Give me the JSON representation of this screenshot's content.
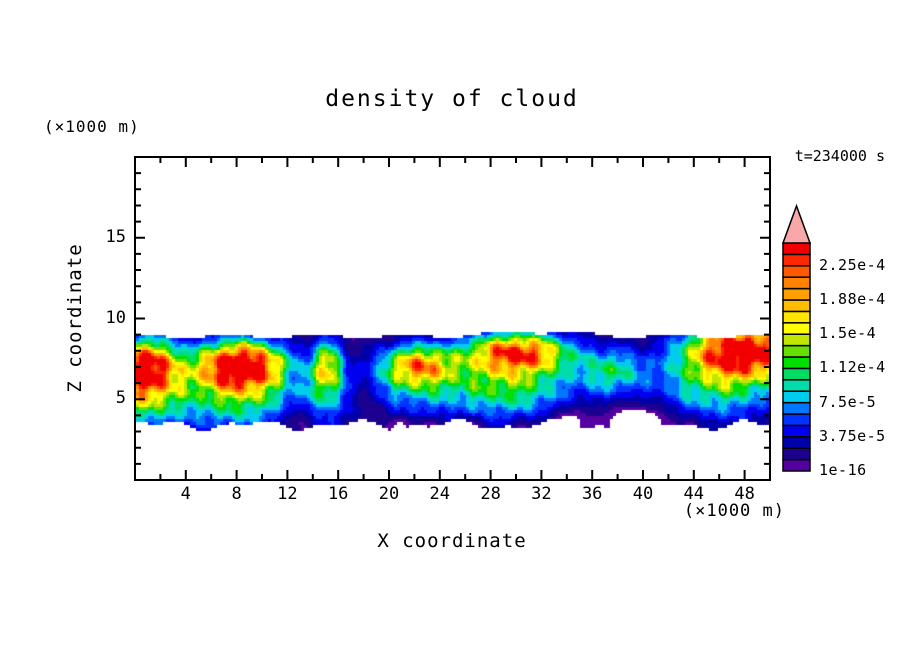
{
  "chart_data": {
    "type": "heatmap",
    "title": "density of cloud",
    "annotation": "t=234000 s",
    "xlabel": "X coordinate",
    "ylabel": "Z coordinate",
    "x_units_label": "(×1000 m)",
    "y_units_label": "(×1000 m)",
    "xlim": [
      0,
      50
    ],
    "zlim": [
      0,
      20
    ],
    "x_major_ticks": [
      4,
      8,
      12,
      16,
      20,
      24,
      28,
      32,
      36,
      40,
      44,
      48
    ],
    "x_minor_step": 2,
    "y_major_ticks": [
      5,
      10,
      15
    ],
    "y_minor_step": 1,
    "grid": false,
    "legend_position": "right-colorbar",
    "colorbar": {
      "levels_min": 1e-16,
      "levels_step": 1.25e-05,
      "levels_max": 0.00025,
      "n_segments": 20,
      "tick_labels": [
        "1e-16",
        "3.75e-5",
        "7.5e-5",
        "1.12e-4",
        "1.5e-4",
        "1.88e-4",
        "2.25e-4"
      ],
      "label_every": 3,
      "palette_bottom_to_top": [
        "#5500a0",
        "#1c0090",
        "#0000aa",
        "#0000ee",
        "#0033ff",
        "#0077ff",
        "#00ccee",
        "#00dcaa",
        "#00dc64",
        "#00e000",
        "#66e000",
        "#bee600",
        "#ffff00",
        "#ffe600",
        "#ffbe00",
        "#ffa000",
        "#ff8200",
        "#ff5a00",
        "#ff2800",
        "#f20000"
      ],
      "overflow_color": "#f8a8a8"
    },
    "field": {
      "description": "horizontal cloud layer between z≈3.3 and z≈8.9 (×1000 m) with embedded high-density cells",
      "band": {
        "top": 8.9,
        "bottom": 3.35,
        "base_density": 1.05e-05
      },
      "blobs": [
        {
          "x": 0.5,
          "z": 7.0,
          "sx": 2.0,
          "sz": 1.15,
          "a": 0.00025
        },
        {
          "x": 0.5,
          "z": 5.0,
          "sx": 2.4,
          "sz": 1.3,
          "a": 0.0001
        },
        {
          "x": 8.3,
          "z": 7.1,
          "sx": 2.3,
          "sz": 1.0,
          "a": 0.00026
        },
        {
          "x": 8.0,
          "z": 5.2,
          "sx": 3.2,
          "sz": 1.5,
          "a": 0.000105
        },
        {
          "x": 15.1,
          "z": 7.0,
          "sx": 0.85,
          "sz": 1.15,
          "a": 0.000135
        },
        {
          "x": 14.9,
          "z": 5.0,
          "sx": 1.4,
          "sz": 1.5,
          "a": 5e-05
        },
        {
          "x": 22.3,
          "z": 7.1,
          "sx": 1.9,
          "sz": 0.85,
          "a": 0.00015
        },
        {
          "x": 21.8,
          "z": 5.8,
          "sx": 2.7,
          "sz": 1.4,
          "a": 6e-05
        },
        {
          "x": 30.2,
          "z": 7.9,
          "sx": 2.7,
          "sz": 0.8,
          "a": 0.00019
        },
        {
          "x": 29.3,
          "z": 6.0,
          "sx": 3.5,
          "sz": 1.5,
          "a": 0.000115
        },
        {
          "x": 37.6,
          "z": 6.7,
          "sx": 1.9,
          "sz": 1.0,
          "a": 8.5e-05
        },
        {
          "x": 48.0,
          "z": 8.0,
          "sx": 3.0,
          "sz": 1.15,
          "a": 0.00026
        },
        {
          "x": 46.0,
          "z": 5.8,
          "sx": 3.4,
          "sz": 1.5,
          "a": 9e-05
        }
      ],
      "holes": [
        {
          "x": 13.0,
          "z": 3.8,
          "sx": 0.9,
          "sz": 0.6,
          "a": 3e-05
        },
        {
          "x": 12.4,
          "z": 6.3,
          "sx": 0.4,
          "sz": 0.35,
          "a": 1.6e-05
        },
        {
          "x": 17.8,
          "z": 5.2,
          "sx": 0.5,
          "sz": 0.5,
          "a": 2e-05
        },
        {
          "x": 19.0,
          "z": 4.4,
          "sx": 0.5,
          "sz": 0.4,
          "a": 1.8e-05
        },
        {
          "x": 21.0,
          "z": 3.3,
          "sx": 0.8,
          "sz": 0.5,
          "a": 2.5e-05
        },
        {
          "x": 23.3,
          "z": 3.2,
          "sx": 0.6,
          "sz": 0.5,
          "a": 2.2e-05
        },
        {
          "x": 26.3,
          "z": 3.3,
          "sx": 0.7,
          "sz": 0.5,
          "a": 2.4e-05
        },
        {
          "x": 30.5,
          "z": 3.2,
          "sx": 0.8,
          "sz": 0.45,
          "a": 2e-05
        },
        {
          "x": 34.0,
          "z": 3.6,
          "sx": 1.1,
          "sz": 0.6,
          "a": 3e-05
        },
        {
          "x": 40.0,
          "z": 3.7,
          "sx": 1.8,
          "sz": 0.7,
          "a": 3.2e-05
        },
        {
          "x": 44.0,
          "z": 3.4,
          "sx": 0.7,
          "sz": 0.45,
          "a": 1.8e-05
        }
      ],
      "noise": {
        "amp": 0.2
      }
    }
  }
}
